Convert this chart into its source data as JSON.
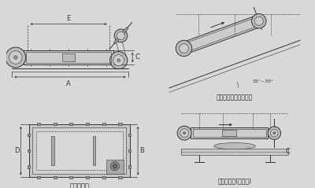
{
  "bg_color": "#e8e8e8",
  "line_color": "#333333",
  "dim_color": "#444444",
  "labels": {
    "outer_dim": "外形尺寸图",
    "install_incline": "安装示意图（倾斜式）",
    "install_horizontal": "安装示意图(水平式)",
    "angle_label": "15°~30°"
  },
  "dim_labels": {
    "A": "A",
    "E": "E",
    "C": "C",
    "D": "D",
    "B": "B"
  }
}
